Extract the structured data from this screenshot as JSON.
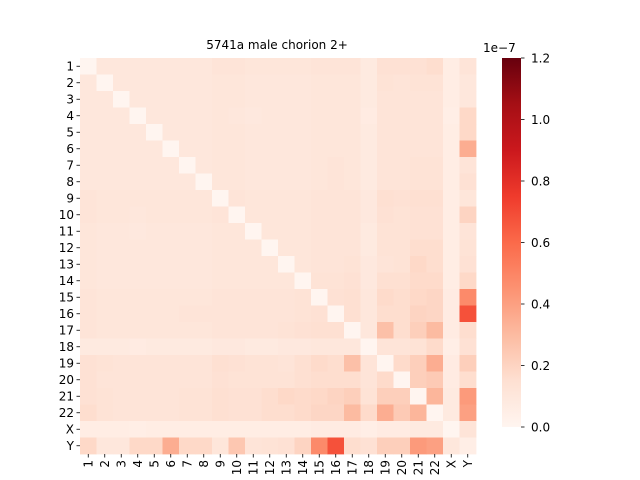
{
  "chart_data": {
    "type": "heatmap",
    "title": "5741a male chorion 2+",
    "row_labels": [
      "1",
      "2",
      "3",
      "4",
      "5",
      "6",
      "7",
      "8",
      "9",
      "10",
      "11",
      "12",
      "13",
      "14",
      "15",
      "16",
      "17",
      "18",
      "19",
      "20",
      "21",
      "22",
      "X",
      "Y"
    ],
    "col_labels": [
      "1",
      "2",
      "3",
      "4",
      "5",
      "6",
      "7",
      "8",
      "9",
      "10",
      "11",
      "12",
      "13",
      "14",
      "15",
      "16",
      "17",
      "18",
      "19",
      "20",
      "21",
      "22",
      "X",
      "Y"
    ],
    "colormap": "Reds",
    "colorbar": {
      "vmin": 0.0,
      "vmax": 1.2,
      "ticks": [
        "0.0",
        "0.2",
        "0.4",
        "0.6",
        "0.8",
        "1.0",
        "1.2"
      ],
      "offset_label": "1e−7"
    },
    "values": [
      [
        0.0,
        0.1,
        0.1,
        0.1,
        0.1,
        0.1,
        0.1,
        0.1,
        0.12,
        0.12,
        0.11,
        0.11,
        0.11,
        0.11,
        0.12,
        0.12,
        0.12,
        0.08,
        0.14,
        0.14,
        0.14,
        0.16,
        0.06,
        0.12
      ],
      [
        0.1,
        0.0,
        0.1,
        0.1,
        0.1,
        0.1,
        0.1,
        0.1,
        0.11,
        0.11,
        0.1,
        0.1,
        0.1,
        0.1,
        0.11,
        0.11,
        0.11,
        0.08,
        0.13,
        0.12,
        0.13,
        0.13,
        0.06,
        0.1
      ],
      [
        0.1,
        0.1,
        0.0,
        0.1,
        0.1,
        0.1,
        0.1,
        0.1,
        0.11,
        0.11,
        0.1,
        0.1,
        0.1,
        0.1,
        0.11,
        0.11,
        0.11,
        0.08,
        0.12,
        0.12,
        0.12,
        0.12,
        0.06,
        0.1
      ],
      [
        0.1,
        0.1,
        0.1,
        0.0,
        0.1,
        0.1,
        0.1,
        0.1,
        0.11,
        0.1,
        0.09,
        0.1,
        0.1,
        0.1,
        0.11,
        0.11,
        0.11,
        0.07,
        0.12,
        0.12,
        0.12,
        0.12,
        0.05,
        0.18
      ],
      [
        0.1,
        0.1,
        0.1,
        0.1,
        0.0,
        0.1,
        0.1,
        0.1,
        0.11,
        0.11,
        0.1,
        0.1,
        0.1,
        0.1,
        0.11,
        0.11,
        0.11,
        0.08,
        0.12,
        0.12,
        0.12,
        0.12,
        0.06,
        0.18
      ],
      [
        0.1,
        0.1,
        0.1,
        0.1,
        0.1,
        0.0,
        0.1,
        0.1,
        0.11,
        0.11,
        0.1,
        0.1,
        0.1,
        0.1,
        0.11,
        0.11,
        0.11,
        0.08,
        0.12,
        0.12,
        0.12,
        0.12,
        0.06,
        0.35
      ],
      [
        0.1,
        0.1,
        0.1,
        0.1,
        0.1,
        0.1,
        0.0,
        0.1,
        0.11,
        0.11,
        0.1,
        0.1,
        0.1,
        0.1,
        0.11,
        0.12,
        0.11,
        0.08,
        0.12,
        0.12,
        0.13,
        0.13,
        0.06,
        0.12
      ],
      [
        0.1,
        0.1,
        0.1,
        0.1,
        0.1,
        0.1,
        0.1,
        0.0,
        0.11,
        0.11,
        0.1,
        0.1,
        0.1,
        0.1,
        0.11,
        0.12,
        0.11,
        0.08,
        0.12,
        0.12,
        0.13,
        0.13,
        0.06,
        0.14
      ],
      [
        0.12,
        0.11,
        0.11,
        0.11,
        0.11,
        0.11,
        0.11,
        0.11,
        0.0,
        0.12,
        0.11,
        0.11,
        0.11,
        0.11,
        0.12,
        0.12,
        0.12,
        0.09,
        0.15,
        0.14,
        0.15,
        0.15,
        0.06,
        0.11
      ],
      [
        0.12,
        0.11,
        0.11,
        0.1,
        0.11,
        0.11,
        0.11,
        0.11,
        0.12,
        0.0,
        0.11,
        0.11,
        0.11,
        0.11,
        0.12,
        0.12,
        0.12,
        0.09,
        0.14,
        0.13,
        0.14,
        0.14,
        0.06,
        0.2
      ],
      [
        0.11,
        0.1,
        0.1,
        0.09,
        0.1,
        0.1,
        0.1,
        0.1,
        0.11,
        0.11,
        0.0,
        0.11,
        0.11,
        0.11,
        0.12,
        0.12,
        0.12,
        0.08,
        0.13,
        0.13,
        0.14,
        0.14,
        0.06,
        0.12
      ],
      [
        0.11,
        0.1,
        0.1,
        0.1,
        0.1,
        0.1,
        0.1,
        0.1,
        0.11,
        0.11,
        0.11,
        0.0,
        0.11,
        0.11,
        0.12,
        0.12,
        0.12,
        0.08,
        0.13,
        0.13,
        0.16,
        0.16,
        0.06,
        0.13
      ],
      [
        0.11,
        0.1,
        0.1,
        0.1,
        0.1,
        0.1,
        0.1,
        0.1,
        0.11,
        0.11,
        0.11,
        0.11,
        0.0,
        0.11,
        0.12,
        0.12,
        0.13,
        0.09,
        0.12,
        0.13,
        0.18,
        0.16,
        0.06,
        0.14
      ],
      [
        0.11,
        0.1,
        0.1,
        0.1,
        0.1,
        0.1,
        0.1,
        0.1,
        0.11,
        0.11,
        0.11,
        0.11,
        0.11,
        0.0,
        0.13,
        0.13,
        0.14,
        0.09,
        0.15,
        0.15,
        0.17,
        0.17,
        0.06,
        0.18
      ],
      [
        0.12,
        0.11,
        0.11,
        0.11,
        0.11,
        0.11,
        0.11,
        0.11,
        0.12,
        0.12,
        0.12,
        0.12,
        0.12,
        0.13,
        0.0,
        0.14,
        0.15,
        0.1,
        0.17,
        0.16,
        0.18,
        0.19,
        0.07,
        0.48
      ],
      [
        0.12,
        0.11,
        0.11,
        0.11,
        0.11,
        0.11,
        0.12,
        0.12,
        0.12,
        0.12,
        0.12,
        0.12,
        0.12,
        0.13,
        0.14,
        0.0,
        0.15,
        0.1,
        0.16,
        0.16,
        0.2,
        0.19,
        0.07,
        0.68
      ],
      [
        0.12,
        0.11,
        0.11,
        0.11,
        0.11,
        0.11,
        0.11,
        0.11,
        0.12,
        0.12,
        0.12,
        0.12,
        0.13,
        0.14,
        0.15,
        0.15,
        0.0,
        0.1,
        0.28,
        0.16,
        0.22,
        0.3,
        0.07,
        0.16
      ],
      [
        0.08,
        0.08,
        0.08,
        0.07,
        0.08,
        0.08,
        0.08,
        0.08,
        0.09,
        0.09,
        0.08,
        0.08,
        0.09,
        0.09,
        0.1,
        0.1,
        0.1,
        0.0,
        0.12,
        0.12,
        0.13,
        0.17,
        0.05,
        0.14
      ],
      [
        0.14,
        0.13,
        0.12,
        0.12,
        0.12,
        0.12,
        0.12,
        0.12,
        0.15,
        0.14,
        0.13,
        0.13,
        0.12,
        0.15,
        0.17,
        0.16,
        0.28,
        0.12,
        0.0,
        0.17,
        0.22,
        0.35,
        0.07,
        0.22
      ],
      [
        0.14,
        0.12,
        0.12,
        0.12,
        0.12,
        0.12,
        0.12,
        0.12,
        0.14,
        0.13,
        0.13,
        0.13,
        0.13,
        0.15,
        0.16,
        0.16,
        0.16,
        0.12,
        0.17,
        0.0,
        0.22,
        0.24,
        0.07,
        0.16
      ],
      [
        0.14,
        0.13,
        0.12,
        0.12,
        0.12,
        0.12,
        0.13,
        0.13,
        0.15,
        0.14,
        0.14,
        0.16,
        0.18,
        0.17,
        0.18,
        0.2,
        0.22,
        0.13,
        0.22,
        0.22,
        0.0,
        0.32,
        0.08,
        0.42
      ],
      [
        0.16,
        0.13,
        0.12,
        0.12,
        0.12,
        0.12,
        0.13,
        0.13,
        0.15,
        0.14,
        0.14,
        0.16,
        0.16,
        0.17,
        0.19,
        0.19,
        0.3,
        0.17,
        0.35,
        0.24,
        0.32,
        0.0,
        0.08,
        0.4
      ],
      [
        0.06,
        0.06,
        0.06,
        0.05,
        0.06,
        0.06,
        0.06,
        0.06,
        0.06,
        0.06,
        0.06,
        0.06,
        0.06,
        0.06,
        0.07,
        0.07,
        0.07,
        0.05,
        0.07,
        0.07,
        0.08,
        0.08,
        0.0,
        0.12
      ],
      [
        0.18,
        0.1,
        0.1,
        0.18,
        0.18,
        0.35,
        0.18,
        0.18,
        0.11,
        0.25,
        0.12,
        0.13,
        0.14,
        0.2,
        0.48,
        0.68,
        0.16,
        0.14,
        0.22,
        0.22,
        0.42,
        0.4,
        0.1,
        0.05
      ]
    ]
  }
}
